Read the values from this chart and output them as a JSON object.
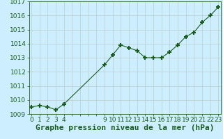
{
  "x_values": [
    0,
    1,
    2,
    3,
    4,
    9,
    10,
    11,
    12,
    13,
    14,
    15,
    16,
    17,
    18,
    19,
    20,
    21,
    22,
    23
  ],
  "y_values": [
    1009.5,
    1009.6,
    1009.5,
    1009.3,
    1009.7,
    1012.5,
    1013.2,
    1013.9,
    1013.7,
    1013.5,
    1013.0,
    1013.0,
    1013.0,
    1013.4,
    1013.9,
    1014.5,
    1014.8,
    1015.5,
    1016.0,
    1016.6
  ],
  "xlim": [
    -0.3,
    23.3
  ],
  "ylim": [
    1009.0,
    1017.0
  ],
  "yticks": [
    1009,
    1010,
    1011,
    1012,
    1013,
    1014,
    1015,
    1016,
    1017
  ],
  "xticks_all": [
    0,
    1,
    2,
    3,
    4,
    5,
    6,
    7,
    8,
    9,
    10,
    11,
    12,
    13,
    14,
    15,
    16,
    17,
    18,
    19,
    20,
    21,
    22,
    23
  ],
  "xtick_show_labels": [
    0,
    1,
    2,
    3,
    4,
    9,
    10,
    11,
    12,
    13,
    14,
    15,
    16,
    17,
    18,
    19,
    20,
    21,
    22,
    23
  ],
  "line_color": "#1a5c1a",
  "marker": "+",
  "marker_size": 5,
  "marker_linewidth": 1.5,
  "linewidth": 0.8,
  "bg_color": "#cceeff",
  "grid_color": "#bbcccc",
  "xlabel": "Graphe pression niveau de la mer (hPa)",
  "xlabel_fontsize": 8,
  "tick_fontsize": 6.5,
  "ytick_fontsize": 6.5
}
